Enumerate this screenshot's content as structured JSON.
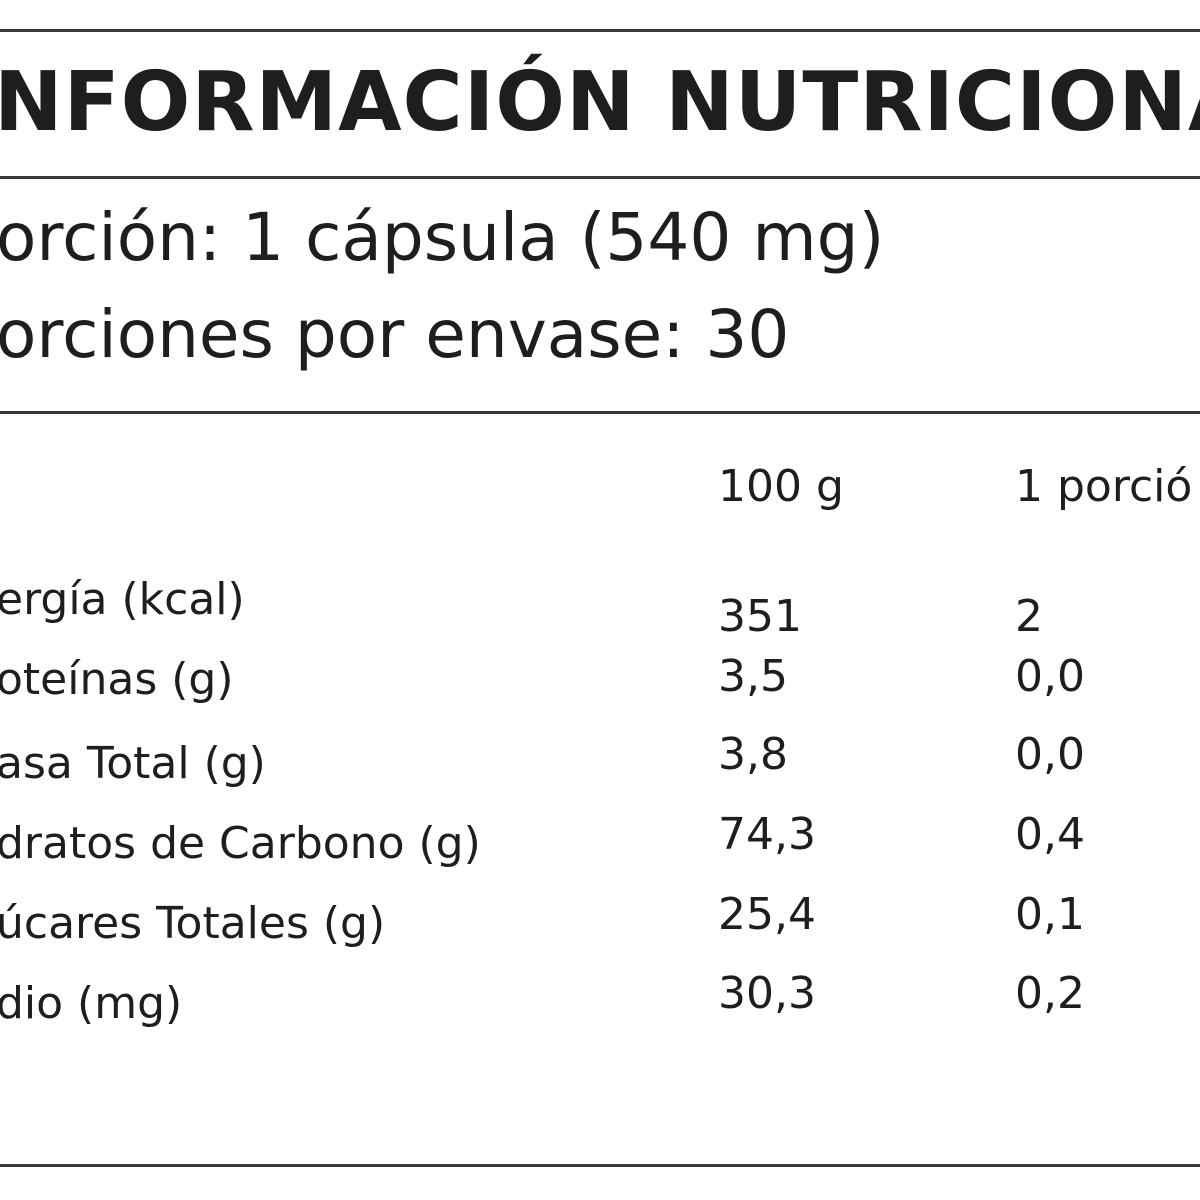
{
  "header": {
    "title": "NFORMACIÓN NUTRICIONA",
    "serving_size": "orción: 1 cápsula (540 mg)",
    "servings_per_container": "orciones por envase: 30"
  },
  "table": {
    "columns": [
      "100 g",
      "1 porció"
    ],
    "rows": [
      [
        "ergía (kcal)",
        "351",
        "2"
      ],
      [
        "oteínas (g)",
        "3,5",
        "0,0"
      ],
      [
        "asa Total (g)",
        "3,8",
        "0,0"
      ],
      [
        "dratos de Carbono (g)",
        "74,3",
        "0,4"
      ],
      [
        "úcares Totales (g)",
        "25,4",
        "0,1"
      ],
      [
        "dio (mg)",
        "30,3",
        "0,2"
      ]
    ]
  }
}
